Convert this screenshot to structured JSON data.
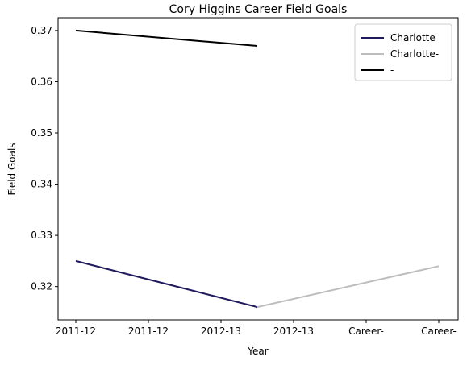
{
  "chart_data": {
    "type": "line",
    "title": "Cory Higgins Career Field Goals",
    "xlabel": "Year",
    "ylabel": "Field Goals",
    "x_ticks": [
      "2011-12",
      "2011-12",
      "2012-13",
      "2012-13",
      "Career-",
      "Career-"
    ],
    "ylim": [
      0.3135,
      0.3725
    ],
    "y_ticks": [
      0.32,
      0.33,
      0.34,
      0.35,
      0.36,
      0.37
    ],
    "grid": false,
    "legend_position": "top-right",
    "series": [
      {
        "name": "Charlotte",
        "color": "#1f1a5c",
        "points": [
          [
            0,
            0.325
          ],
          [
            2.5,
            0.316
          ]
        ]
      },
      {
        "name": "Charlotte-",
        "color": "#bdbdbd",
        "points": [
          [
            2.5,
            0.316
          ],
          [
            5,
            0.324
          ]
        ]
      },
      {
        "name": "-",
        "color": "#000000",
        "points": [
          [
            0,
            0.37
          ],
          [
            2.5,
            0.367
          ]
        ]
      }
    ]
  }
}
